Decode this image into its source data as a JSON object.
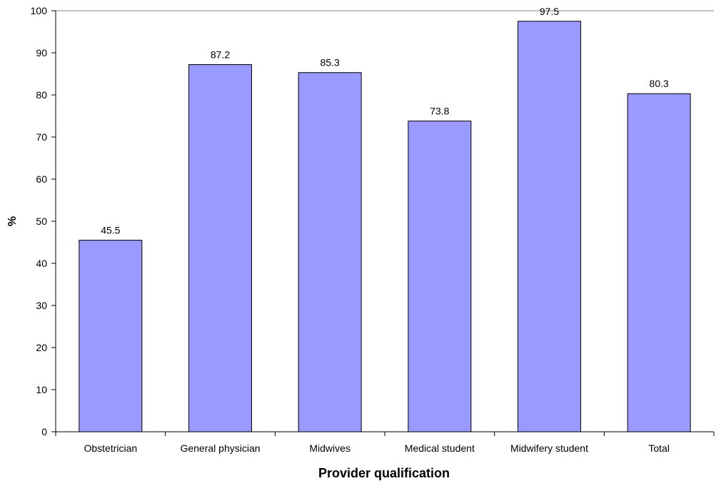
{
  "chart_data": {
    "type": "bar",
    "categories": [
      "Obstetrician",
      "General physician",
      "Midwives",
      "Medical student",
      "Midwifery student",
      "Total"
    ],
    "values": [
      45.5,
      87.2,
      85.3,
      73.8,
      97.5,
      80.3
    ],
    "data_labels": [
      "45.5",
      "87.2",
      "85.3",
      "73.8",
      "97.5",
      "80.3"
    ],
    "title": "",
    "xlabel": "Provider qualification",
    "ylabel": "%",
    "ylim": [
      0,
      100
    ],
    "yticks": [
      0,
      10,
      20,
      30,
      40,
      50,
      60,
      70,
      80,
      90,
      100
    ],
    "ytick_labels": [
      "0",
      "10",
      "20",
      "30",
      "40",
      "50",
      "60",
      "70",
      "80",
      "90",
      "100"
    ],
    "grid": false,
    "legend": "none",
    "colors": {
      "bar_fill": "#9999ff",
      "bar_stroke": "#000000",
      "axis": "#000000",
      "top_border": "#808080"
    }
  }
}
